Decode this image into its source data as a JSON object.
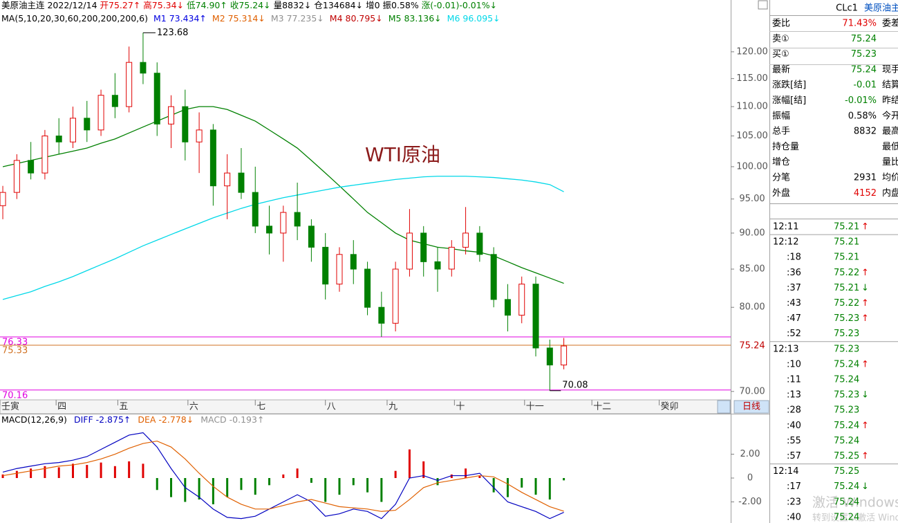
{
  "header": {
    "line1": [
      {
        "text": "美原油主连 2022/12/14",
        "color": "#000000"
      },
      {
        "text": "开75.27↑",
        "color": "#e00000"
      },
      {
        "text": "高75.34↓",
        "color": "#e00000"
      },
      {
        "text": "低74.90↑",
        "color": "#008000"
      },
      {
        "text": "收75.24↓",
        "color": "#008000"
      },
      {
        "text": "量8832↓",
        "color": "#000000"
      },
      {
        "text": "仓134684↓",
        "color": "#000000"
      },
      {
        "text": "增0",
        "color": "#000000"
      },
      {
        "text": "振0.58%",
        "color": "#000000"
      },
      {
        "text": "涨(-0.01)-0.01%↓",
        "color": "#008000"
      }
    ],
    "ma_title": "MA(5,10,20,30,60,200,200,200,6)",
    "ma_labels": [
      {
        "text": "M1 73.434↑",
        "color": "#0000e0"
      },
      {
        "text": "M2 75.314↓",
        "color": "#e06000"
      },
      {
        "text": "M3 77.235↓",
        "color": "#909090"
      },
      {
        "text": "M4 80.795↓",
        "color": "#c00000"
      }
    ]
  },
  "chart_data": [
    {
      "type": "candlestick",
      "title": "WTI原油",
      "log_scale": true,
      "xlim": [
        0,
        260
      ],
      "ylim": [
        69.3,
        124
      ],
      "x": [
        1,
        6,
        11,
        16,
        21,
        26,
        31,
        36,
        41,
        46,
        51,
        56,
        61,
        66,
        71,
        76,
        81,
        86,
        91,
        96,
        101,
        106,
        111,
        116,
        121,
        126,
        131,
        136,
        141,
        146,
        151,
        156,
        161,
        166,
        171,
        176,
        181,
        186,
        191,
        196,
        201
      ],
      "candles": {
        "open": [
          94,
          96,
          101,
          99,
          105,
          104,
          108,
          106,
          112,
          110,
          118,
          116,
          107,
          110,
          104,
          106,
          97,
          99,
          96,
          91,
          90,
          93,
          91,
          88,
          83,
          87,
          85,
          80,
          78,
          85,
          90,
          86,
          85,
          88,
          90,
          87,
          81,
          79,
          83,
          75,
          73
        ],
        "high": [
          97,
          102,
          104,
          106,
          108,
          110,
          111,
          113,
          116,
          121,
          123.68,
          118,
          112,
          113,
          109,
          107,
          102,
          103,
          100,
          94,
          94,
          97.5,
          92,
          90,
          88,
          89,
          86,
          82,
          86,
          93.5,
          91,
          88,
          89,
          93.8,
          91,
          88,
          83,
          84,
          84,
          76,
          76.2
        ],
        "low": [
          92,
          95,
          98,
          98,
          102,
          103,
          104,
          105,
          108,
          109,
          114,
          105,
          103,
          101,
          99,
          94,
          92,
          95,
          90,
          87,
          86,
          89,
          86,
          81,
          82,
          83,
          79,
          76.33,
          77,
          84,
          84,
          82,
          84,
          87,
          86,
          80,
          77,
          78,
          74,
          70.08,
          72.5
        ],
        "close": [
          96,
          101,
          99,
          105,
          104,
          108,
          106,
          112,
          110,
          118,
          116,
          107,
          110,
          104,
          106,
          97,
          99,
          96,
          91,
          90,
          93,
          91,
          88,
          83,
          87,
          85,
          80,
          78,
          85,
          90,
          86,
          85,
          88,
          90,
          87,
          81,
          79,
          83,
          75,
          73,
          75.24
        ],
        "up_color": "#e00000",
        "down_color": "#008000"
      },
      "series": [
        {
          "name": "M5 83.136↓",
          "color": "#008000",
          "values": [
            100,
            100.5,
            101,
            101.5,
            102,
            102.5,
            103,
            103.8,
            104.5,
            105.5,
            106.5,
            107.5,
            108.5,
            109.5,
            110,
            110,
            109.5,
            108.5,
            107.5,
            106,
            104.5,
            103,
            101,
            99,
            97,
            95,
            93,
            91.5,
            90,
            89,
            88.5,
            88,
            87.8,
            87.5,
            87.3,
            86.8,
            86,
            85.2,
            84.5,
            83.8,
            83.1
          ]
        },
        {
          "name": "M6 96.095↓",
          "color": "#00d8e8",
          "values": [
            81,
            81.5,
            82,
            82.7,
            83.3,
            84,
            84.8,
            85.6,
            86.4,
            87.3,
            88.2,
            89,
            89.8,
            90.6,
            91.4,
            92.2,
            92.9,
            93.6,
            94.2,
            94.7,
            95.2,
            95.6,
            96,
            96.4,
            96.8,
            97.1,
            97.4,
            97.7,
            98,
            98.2,
            98.4,
            98.5,
            98.5,
            98.5,
            98.4,
            98.3,
            98.1,
            97.9,
            97.6,
            97.2,
            96.1
          ]
        }
      ],
      "yticks": [
        {
          "value": 70,
          "label": "70.00"
        },
        {
          "value": 80,
          "label": "80.00"
        },
        {
          "value": 85,
          "label": "85.00"
        },
        {
          "value": 90,
          "label": "90.00"
        },
        {
          "value": 95,
          "label": "95.00"
        },
        {
          "value": 100,
          "label": "100.00"
        },
        {
          "value": 105,
          "label": "105.00"
        },
        {
          "value": 110,
          "label": "110.00"
        },
        {
          "value": 115,
          "label": "115.00"
        },
        {
          "value": 120,
          "label": "120.00"
        }
      ],
      "xticks": [
        {
          "value": 0,
          "label": "壬寅"
        },
        {
          "value": 20,
          "label": "四"
        },
        {
          "value": 42,
          "label": "五"
        },
        {
          "value": 67,
          "label": "六"
        },
        {
          "value": 91,
          "label": "七"
        },
        {
          "value": 116,
          "label": "八"
        },
        {
          "value": 138,
          "label": "九"
        },
        {
          "value": 162,
          "label": "十"
        },
        {
          "value": 187,
          "label": "十一"
        },
        {
          "value": 211,
          "label": "十二"
        },
        {
          "value": 235,
          "label": "癸卯"
        }
      ],
      "levels": [
        76.33,
        75.33,
        70.16
      ],
      "level_colors": [
        "#e000e0",
        "#d07020",
        "#e000e0"
      ],
      "last": 75.24,
      "period": "日线"
    },
    {
      "type": "macd",
      "title": "MACD(12,26,9)",
      "xlim": [
        0,
        260
      ],
      "ylim": [
        -3.77,
        5.28
      ],
      "x": [
        1,
        6,
        11,
        16,
        21,
        26,
        31,
        36,
        41,
        46,
        51,
        56,
        61,
        66,
        71,
        76,
        81,
        86,
        91,
        96,
        101,
        106,
        111,
        116,
        121,
        126,
        131,
        136,
        141,
        146,
        151,
        156,
        161,
        166,
        171,
        176,
        181,
        186,
        191,
        196,
        201
      ],
      "series": [
        {
          "name": "DIFF -2.875↑",
          "color": "#0000c0",
          "values": [
            0.5,
            0.8,
            1.0,
            1.2,
            1.3,
            1.5,
            1.8,
            2.4,
            3.0,
            3.6,
            3.8,
            2.6,
            0.8,
            -0.8,
            -1.6,
            -2.6,
            -3.3,
            -3.4,
            -3.2,
            -2.6,
            -2.0,
            -1.4,
            -2.0,
            -3.2,
            -3.0,
            -2.6,
            -2.8,
            -3.4,
            -2.2,
            0,
            0.2,
            -0.2,
            0.2,
            0.2,
            0.4,
            -0.8,
            -2.0,
            -2.4,
            -2.8,
            -3.4,
            -2.875
          ]
        },
        {
          "name": "DEA -2.778↓",
          "color": "#e06000",
          "values": [
            0.2,
            0.4,
            0.6,
            0.8,
            1.0,
            1.1,
            1.3,
            1.6,
            2.0,
            2.5,
            2.9,
            3.1,
            2.6,
            1.6,
            0.4,
            -0.7,
            -1.6,
            -2.2,
            -2.6,
            -2.6,
            -2.3,
            -2.0,
            -1.8,
            -2.1,
            -2.4,
            -2.5,
            -2.6,
            -2.8,
            -2.7,
            -1.8,
            -0.8,
            -0.4,
            -0.2,
            0,
            0.2,
            0.1,
            -0.5,
            -1.2,
            -1.8,
            -2.4,
            -2.778
          ]
        }
      ],
      "histogram": {
        "name": "MACD -0.193↑",
        "color": "#909090",
        "up_color": "#e00000",
        "down_color": "#008000",
        "values": [
          0.3,
          0.6,
          0.8,
          1.0,
          0.9,
          1.2,
          1.1,
          1.3,
          1.0,
          1.4,
          1.2,
          -1.0,
          -1.6,
          -2.0,
          -1.8,
          -2.2,
          -1.6,
          -1.0,
          -1.4,
          -0.6,
          0.3,
          0.8,
          -0.4,
          -2.0,
          -1.4,
          -0.6,
          -1.2,
          -2.0,
          0.6,
          2.4,
          1.4,
          -0.6,
          0.3,
          0.8,
          0.2,
          -1.2,
          -1.6,
          -0.8,
          -1.4,
          -1.8,
          -0.193
        ]
      },
      "yticks": [
        {
          "value": 2,
          "label": "2.00"
        },
        0,
        {
          "value": -2,
          "label": "-2.00"
        }
      ]
    }
  ],
  "side_panel": {
    "code": "CLc1",
    "name": "美原油主连",
    "quote": [
      {
        "label": "委比",
        "value": "71.43%",
        "color": "#e00000",
        "right": "委差"
      },
      {
        "label": "卖①",
        "value": "75.24",
        "color": "#008000"
      },
      {
        "label": "买①",
        "value": "75.23",
        "color": "#008000"
      },
      {
        "label": "最新",
        "value": "75.24",
        "color": "#008000",
        "right": "现手"
      },
      {
        "label": "涨跌[结]",
        "value": "-0.01",
        "color": "#008000",
        "right": "结算"
      },
      {
        "label": "涨幅[结]",
        "value": "-0.01%",
        "color": "#008000",
        "right": "昨结"
      },
      {
        "label": "振幅",
        "value": "0.58%",
        "color": "#000000",
        "right": "今开"
      },
      {
        "label": "总手",
        "value": "8832",
        "color": "#000000",
        "right": "最高"
      },
      {
        "label": "持仓量",
        "right": "最低"
      },
      {
        "label": "增仓",
        "right": "量比"
      },
      {
        "label": "分笔",
        "value": "2931",
        "color": "#000000",
        "right": "均价"
      },
      {
        "label": "外盘",
        "value": "4152",
        "color": "#e00000",
        "right": "内盘"
      }
    ],
    "trades": [
      {
        "time": "12:11",
        "price": "75.21",
        "dir": "↑"
      },
      {
        "time": "12:12",
        "price": "75.21"
      },
      {
        "time": ":18",
        "price": "75.21"
      },
      {
        "time": ":36",
        "price": "75.22",
        "dir": "↑"
      },
      {
        "time": ":37",
        "price": "75.21",
        "dir": "↓"
      },
      {
        "time": ":43",
        "price": "75.22",
        "dir": "↑"
      },
      {
        "time": ":47",
        "price": "75.23",
        "dir": "↑"
      },
      {
        "time": ":52",
        "price": "75.23"
      },
      {
        "time": "12:13",
        "price": "75.23"
      },
      {
        "time": ":10",
        "price": "75.24",
        "dir": "↑"
      },
      {
        "time": ":11",
        "price": "75.24"
      },
      {
        "time": ":13",
        "price": "75.23",
        "dir": "↓"
      },
      {
        "time": ":28",
        "price": "75.23"
      },
      {
        "time": ":40",
        "price": "75.24",
        "dir": "↑"
      },
      {
        "time": ":55",
        "price": "75.24"
      },
      {
        "time": ":57",
        "price": "75.25",
        "dir": "↑"
      },
      {
        "time": "12:14",
        "price": "75.25"
      },
      {
        "time": ":17",
        "price": "75.24",
        "dir": "↓"
      },
      {
        "time": ":23",
        "price": "75.24"
      },
      {
        "time": ":40",
        "price": "75.24"
      }
    ]
  },
  "watermark": {
    "line1": "激活 Windows",
    "line2": "转到设置以激活 Windows"
  }
}
